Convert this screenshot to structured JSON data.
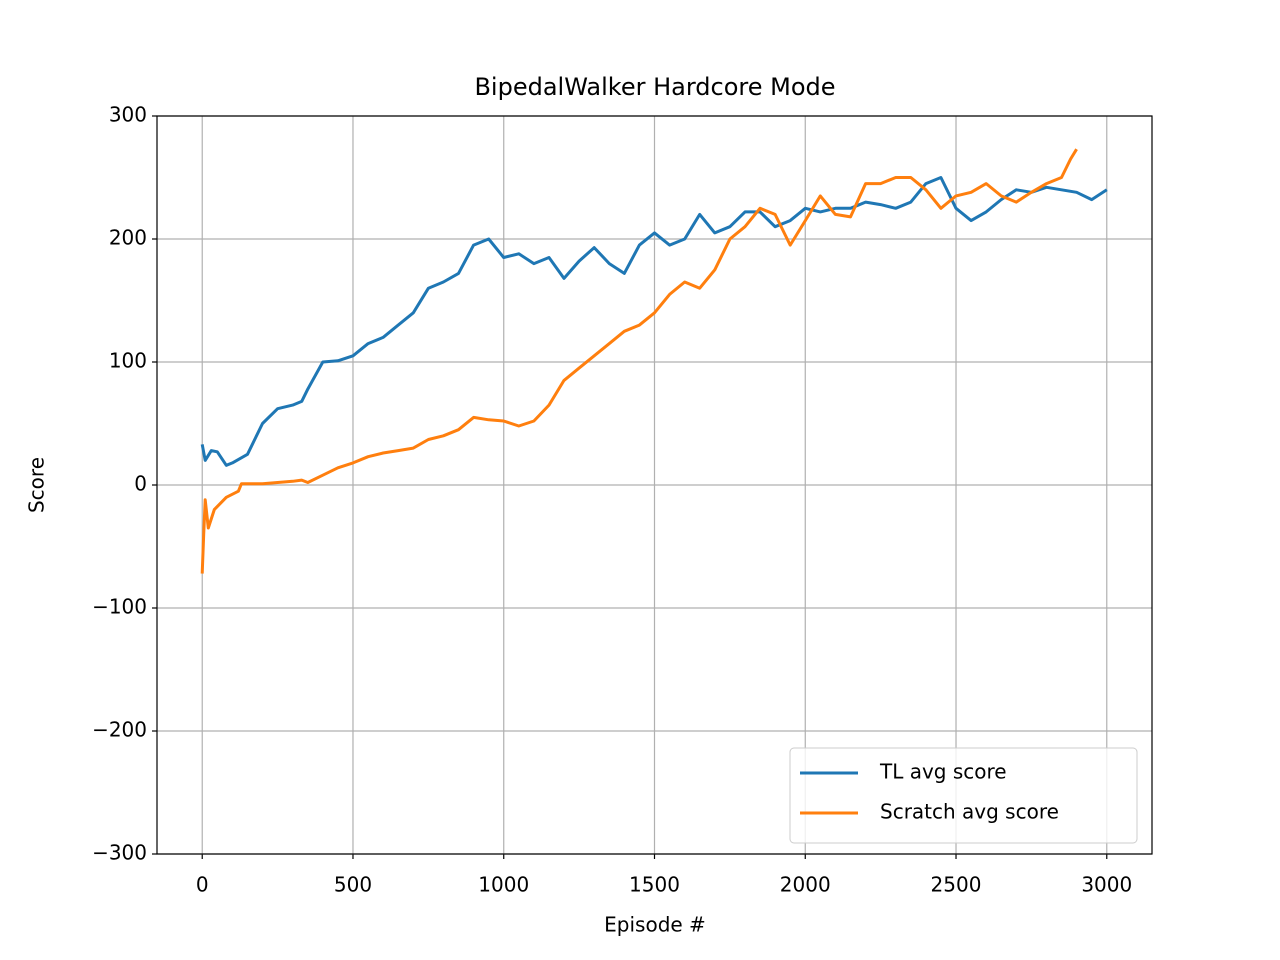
{
  "chart_data": {
    "type": "line",
    "title": "BipedalWalker Hardcore Mode",
    "x_label": "Episode #",
    "y_label": "Score",
    "xlim": [
      -150,
      3150
    ],
    "ylim": [
      -300,
      300
    ],
    "xticks": [
      0,
      500,
      1000,
      1500,
      2000,
      2500,
      3000
    ],
    "yticks": [
      {
        "value": -300,
        "label": "−300"
      },
      {
        "value": -200,
        "label": "−200"
      },
      {
        "value": -100,
        "label": "−100"
      },
      0,
      100,
      200,
      300
    ],
    "grid": true,
    "legend": "lower right",
    "series": [
      {
        "name": "TL avg score",
        "color": "#1f77b4",
        "x": [
          0,
          10,
          30,
          50,
          80,
          100,
          150,
          200,
          250,
          300,
          330,
          350,
          400,
          450,
          500,
          550,
          600,
          650,
          700,
          750,
          800,
          850,
          900,
          950,
          1000,
          1050,
          1100,
          1150,
          1200,
          1250,
          1300,
          1350,
          1400,
          1450,
          1500,
          1550,
          1600,
          1650,
          1700,
          1750,
          1800,
          1850,
          1900,
          1950,
          2000,
          2050,
          2100,
          2150,
          2200,
          2250,
          2300,
          2350,
          2400,
          2450,
          2500,
          2550,
          2600,
          2650,
          2700,
          2750,
          2800,
          2850,
          2900,
          2950,
          3000
        ],
        "values": [
          33,
          20,
          28,
          27,
          16,
          18,
          25,
          50,
          62,
          65,
          68,
          78,
          100,
          101,
          105,
          115,
          120,
          130,
          140,
          160,
          165,
          172,
          195,
          200,
          185,
          188,
          180,
          185,
          168,
          182,
          193,
          180,
          172,
          195,
          205,
          195,
          200,
          220,
          205,
          210,
          222,
          222,
          210,
          215,
          225,
          222,
          225,
          225,
          230,
          228,
          225,
          230,
          245,
          250,
          225,
          215,
          222,
          232,
          240,
          238,
          242,
          240,
          238,
          232,
          240
        ]
      },
      {
        "name": "Scratch avg score",
        "color": "#ff7f0e",
        "x": [
          0,
          5,
          10,
          20,
          40,
          80,
          120,
          130,
          200,
          300,
          330,
          350,
          400,
          450,
          500,
          550,
          600,
          650,
          700,
          750,
          800,
          850,
          900,
          950,
          1000,
          1050,
          1100,
          1150,
          1200,
          1250,
          1300,
          1350,
          1400,
          1450,
          1500,
          1550,
          1600,
          1650,
          1700,
          1750,
          1800,
          1850,
          1900,
          1950,
          2000,
          2050,
          2100,
          2150,
          2200,
          2250,
          2300,
          2350,
          2400,
          2450,
          2500,
          2550,
          2600,
          2650,
          2700,
          2750,
          2800,
          2850,
          2880,
          2900
        ],
        "values": [
          -72,
          -40,
          -12,
          -35,
          -20,
          -10,
          -5,
          1,
          1,
          3,
          4,
          2,
          8,
          14,
          18,
          23,
          26,
          28,
          30,
          37,
          40,
          45,
          55,
          53,
          52,
          48,
          52,
          65,
          85,
          95,
          105,
          115,
          125,
          130,
          140,
          155,
          165,
          160,
          175,
          200,
          210,
          225,
          220,
          195,
          215,
          235,
          220,
          218,
          245,
          245,
          250,
          250,
          240,
          225,
          235,
          238,
          245,
          235,
          230,
          238,
          245,
          250,
          265,
          273
        ]
      }
    ]
  }
}
